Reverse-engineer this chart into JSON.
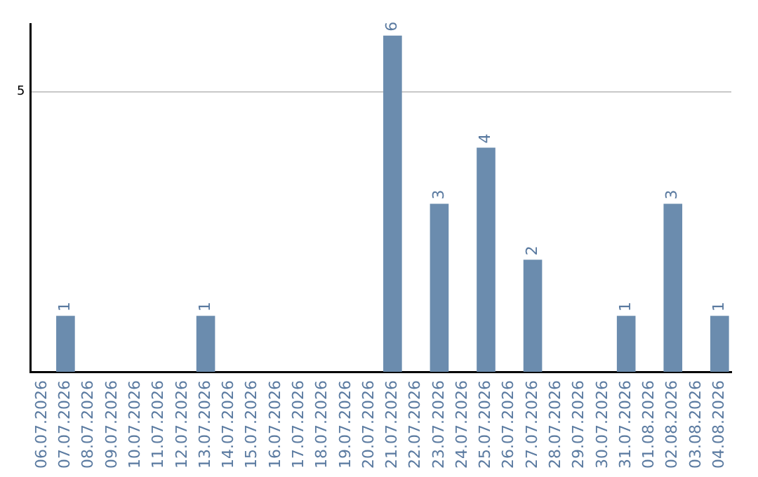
{
  "chart_data": {
    "type": "bar",
    "categories": [
      "06.07.2026",
      "07.07.2026",
      "08.07.2026",
      "09.07.2026",
      "10.07.2026",
      "11.07.2026",
      "12.07.2026",
      "13.07.2026",
      "14.07.2026",
      "15.07.2026",
      "16.07.2026",
      "17.07.2026",
      "18.07.2026",
      "19.07.2026",
      "20.07.2026",
      "21.07.2026",
      "22.07.2026",
      "23.07.2026",
      "24.07.2026",
      "25.07.2026",
      "26.07.2026",
      "27.07.2026",
      "28.07.2026",
      "29.07.2026",
      "30.07.2026",
      "31.07.2026",
      "01.08.2026",
      "02.08.2026",
      "03.08.2026",
      "04.08.2026"
    ],
    "values": [
      0,
      1,
      0,
      0,
      0,
      0,
      0,
      1,
      0,
      0,
      0,
      0,
      0,
      0,
      0,
      6,
      0,
      3,
      0,
      4,
      0,
      2,
      0,
      0,
      0,
      1,
      0,
      3,
      0,
      1
    ],
    "value_labels": [
      null,
      "1",
      null,
      null,
      null,
      null,
      null,
      "1",
      null,
      null,
      null,
      null,
      null,
      null,
      null,
      "6",
      null,
      "3",
      null,
      "4",
      null,
      "2",
      null,
      null,
      null,
      "1",
      null,
      "3",
      null,
      "1"
    ],
    "color": "#6b8cae",
    "ylim": [
      0,
      6.2
    ],
    "yticks": [
      5
    ],
    "grid": "y",
    "legend": false
  }
}
